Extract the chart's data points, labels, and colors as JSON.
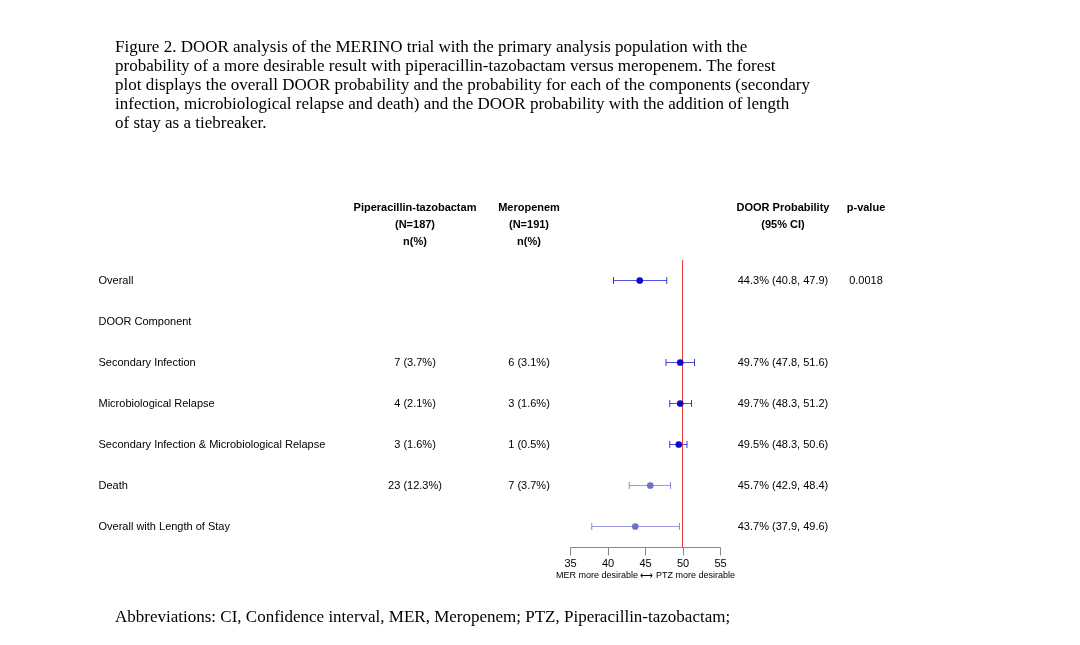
{
  "chart_data": [
    {
      "type": "other",
      "title": "Figure 2. DOOR analysis of the MERINO trial with the primary analysis population with the probability of a more desirable result with piperacillin-tazobactam versus meropenem. The forest plot displays the overall DOOR probability and the probability for each of the components (secondary infection, microbiological relapse and death) and the DOOR probability with the addition of length of stay as a tiebreaker.",
      "categories": [
        "Piperacillin-tazobactam\n(N=187)\nn(%)",
        "Meropenem\n(N=191)\nn(%)"
      ],
      "cell_labels": [
        [
          null,
          null
        ],
        [
          null,
          null
        ],
        [
          "7 (3.7%)",
          "6 (3.1%)"
        ],
        [
          "4 (2.1%)",
          "3 (1.6%)"
        ],
        [
          "3 (1.6%)",
          "1 (0.5%)"
        ],
        [
          "23 (12.3%)",
          "7 (3.7%)"
        ],
        [
          null,
          null
        ]
      ],
      "annotations": [
        "Abbreviations: CI, Confidence interval, MER, Meropenem; PTZ, Piperacillin-tazobactam;"
      ]
    },
    {
      "type": "scatter",
      "orientation": "horizontal",
      "categories": [
        "Overall",
        "DOOR Component",
        "Secondary Infection",
        "Microbiological Relapse",
        "Secondary Infection & Microbiological Relapse",
        "Death",
        "Overall with Length of Stay"
      ],
      "values": [
        44.3,
        null,
        49.7,
        49.7,
        49.5,
        45.7,
        43.7
      ],
      "errors": [
        [
          40.8,
          47.9
        ],
        null,
        [
          47.8,
          51.6
        ],
        [
          48.3,
          51.2
        ],
        [
          48.3,
          50.6
        ],
        [
          42.9,
          48.4
        ],
        [
          37.9,
          49.6
        ]
      ],
      "colors": [
        "#0a0ac8",
        null,
        "#0a0ac8",
        "#0a0ac8",
        "#0a0ac8",
        "#6f6fd0",
        "#6f6fd0"
      ],
      "xlim": [
        35,
        55
      ],
      "xticks": [
        35,
        40,
        45,
        50,
        55
      ],
      "xlabel": "MER more desirable ⟷ PTZ more desirable",
      "ref_lines": [
        {
          "axis": "x",
          "value": 50,
          "color": "#e03c3c"
        }
      ],
      "marker": "circle",
      "grid": false,
      "tick_labels": "x"
    },
    {
      "type": "other",
      "categories": [
        "DOOR Probability\n(95% CI)",
        "p-value"
      ],
      "cell_labels": [
        [
          "44.3% (40.8, 47.9)",
          "0.0018"
        ],
        [
          null,
          null
        ],
        [
          "49.7% (47.8, 51.6)",
          null
        ],
        [
          "49.7% (48.3, 51.2)",
          null
        ],
        [
          "49.5% (48.3, 50.6)",
          null
        ],
        [
          "45.7% (42.9, 48.4)",
          null
        ],
        [
          "43.7% (37.9, 49.6)",
          null
        ]
      ]
    }
  ]
}
